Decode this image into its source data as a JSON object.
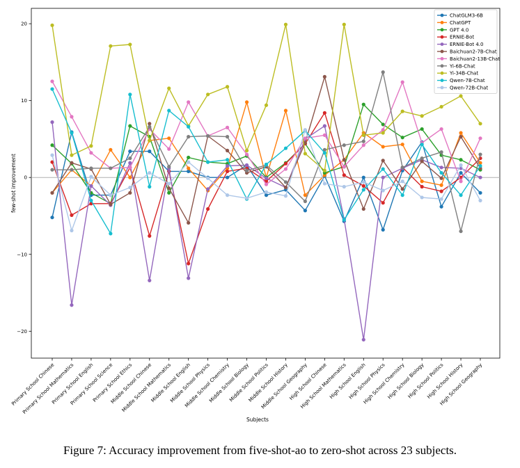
{
  "chart_data": {
    "type": "line",
    "title": "",
    "xlabel": "Subjects",
    "ylabel": "few-shot improvement",
    "ylim": [
      -23.5,
      22
    ],
    "yticks": [
      -20,
      -10,
      0,
      10,
      20
    ],
    "legend_position": "top-right",
    "grid": false,
    "reference_line": 0,
    "categories": [
      "Primary School Chinese",
      "Primary School Mathematics",
      "Primary School English",
      "Primary School Science",
      "Primary School Ethics",
      "Middle School Chinese",
      "Middle School Mathematics",
      "Middle School English",
      "Middle School Physics",
      "Middle School Chemistry",
      "Middle School Biology",
      "Middle School Politics",
      "Middle School History",
      "Middle School Geography",
      "High School Chinese",
      "High School Mathematics",
      "High School English",
      "High School Physics",
      "High School Chemistry",
      "High School Biology",
      "High School Politics",
      "High School History",
      "High School Geography"
    ],
    "series": [
      {
        "name": "ChatGLM3-6B",
        "color": "#1f77b4",
        "values": [
          -5.2,
          5.9,
          -2.3,
          -2.3,
          3.4,
          3.4,
          0.8,
          0.8,
          0.0,
          0.0,
          1.6,
          -2.3,
          -1.6,
          -4.3,
          0.2,
          -5.7,
          0.0,
          -6.8,
          0.9,
          4.6,
          -3.8,
          0.6,
          -2.0
        ]
      },
      {
        "name": "ChatGPT",
        "color": "#ff7f0e",
        "values": [
          -2.0,
          1.0,
          -1.1,
          3.6,
          0.0,
          4.8,
          5.1,
          1.2,
          -1.7,
          1.2,
          9.8,
          0.0,
          8.7,
          -2.3,
          0.3,
          2.3,
          5.8,
          4.0,
          4.3,
          -0.5,
          -1.0,
          5.8,
          1.9
        ]
      },
      {
        "name": "GPT 4.0",
        "color": "#2ca02c",
        "values": [
          4.2,
          1.8,
          -2.0,
          -3.4,
          6.7,
          5.3,
          -2.0,
          2.6,
          2.0,
          1.8,
          2.8,
          0.0,
          1.9,
          4.4,
          0.6,
          1.4,
          9.5,
          6.9,
          5.2,
          6.3,
          2.9,
          2.3,
          1.0
        ]
      },
      {
        "name": "ERNIE-Bot",
        "color": "#d62728",
        "values": [
          2.0,
          -4.9,
          -3.4,
          -3.4,
          1.3,
          -7.6,
          0.8,
          -11.2,
          -4.1,
          0.8,
          1.2,
          -0.5,
          1.8,
          4.4,
          8.4,
          0.3,
          -1.1,
          -3.3,
          1.3,
          -1.2,
          -1.8,
          0.0,
          2.5
        ]
      },
      {
        "name": "ERNIE-Bot 4.0",
        "color": "#9467bd",
        "values": [
          7.2,
          -16.6,
          -1.1,
          -3.6,
          1.9,
          -13.4,
          1.2,
          -13.1,
          -1.5,
          1.5,
          1.6,
          -0.1,
          -1.3,
          5.0,
          6.7,
          -5.4,
          -21.1,
          0.0,
          1.2,
          2.3,
          1.3,
          1.2,
          0.0
        ]
      },
      {
        "name": "Baichuan2-7B-Chat",
        "color": "#8c564b",
        "values": [
          -2.0,
          1.9,
          1.1,
          -3.5,
          -2.0,
          7.0,
          -1.4,
          -5.9,
          5.4,
          3.5,
          0.6,
          1.4,
          -1.3,
          4.5,
          13.1,
          2.3,
          -4.1,
          2.2,
          -1.5,
          2.1,
          -0.1,
          5.3,
          1.2
        ]
      },
      {
        "name": "Baichuan2-13B-Chat",
        "color": "#e377c2",
        "values": [
          12.5,
          7.9,
          3.2,
          1.2,
          1.3,
          6.3,
          3.7,
          9.8,
          5.4,
          6.5,
          3.0,
          -0.9,
          1.1,
          5.1,
          5.5,
          1.4,
          4.2,
          6.2,
          12.4,
          4.5,
          6.3,
          -0.5,
          5.1
        ]
      },
      {
        "name": "Yi-6B-Chat",
        "color": "#7f7f7f",
        "values": [
          1.0,
          1.0,
          1.2,
          1.2,
          2.5,
          6.6,
          1.4,
          5.3,
          5.4,
          5.3,
          0.9,
          1.6,
          -0.6,
          -3.1,
          3.6,
          4.2,
          4.7,
          13.7,
          1.3,
          2.5,
          3.3,
          -7.0,
          3.0
        ]
      },
      {
        "name": "Yi-34B-Chat",
        "color": "#bcbd22",
        "values": [
          19.8,
          2.9,
          4.1,
          17.1,
          17.3,
          4.8,
          11.6,
          6.7,
          10.8,
          11.8,
          3.5,
          9.4,
          19.9,
          3.1,
          0.9,
          19.9,
          5.5,
          5.8,
          8.6,
          8.0,
          9.2,
          10.6,
          7.0
        ]
      },
      {
        "name": "Qwen-7B-Chat",
        "color": "#17becf",
        "values": [
          11.5,
          5.8,
          -3.0,
          -7.3,
          10.8,
          -1.2,
          8.7,
          6.6,
          2.0,
          2.3,
          -2.8,
          1.7,
          3.8,
          6.1,
          3.2,
          -5.5,
          -1.6,
          1.1,
          -2.3,
          4.3,
          0.6,
          -2.3,
          1.5
        ]
      },
      {
        "name": "Qwen-72B-Chat",
        "color": "#aec7e8",
        "values": [
          2.9,
          -6.9,
          0.1,
          -2.3,
          -1.3,
          0.6,
          -0.8,
          2.0,
          -0.1,
          -2.3,
          -2.7,
          -1.9,
          -2.4,
          6.2,
          -0.8,
          -1.2,
          -0.6,
          -1.7,
          -0.5,
          -2.6,
          -2.8,
          1.6,
          -3.0
        ]
      }
    ]
  },
  "caption": "Figure 7: Accuracy improvement from five-shot-ao to zero-shot across 23 subjects."
}
